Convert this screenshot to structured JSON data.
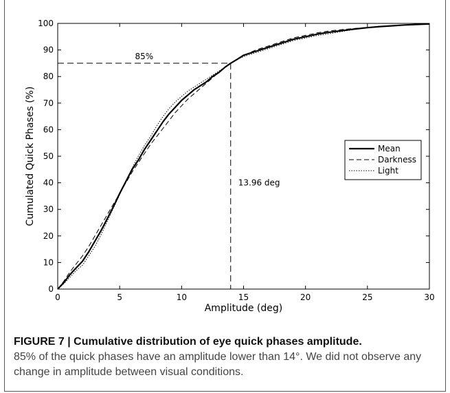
{
  "chart_data": {
    "type": "line",
    "xlabel": "Amplitude (deg)",
    "ylabel": "Cumulated Quick Phases (%)",
    "xlim": [
      0,
      30
    ],
    "ylim": [
      0,
      100
    ],
    "xticks": [
      0,
      5,
      10,
      15,
      20,
      25,
      30
    ],
    "yticks": [
      0,
      10,
      20,
      30,
      40,
      50,
      60,
      70,
      80,
      90,
      100
    ],
    "grid": false,
    "legend_position": "right",
    "series": [
      {
        "name": "Mean",
        "style": "solid",
        "x": [
          0,
          0.5,
          1,
          1.5,
          2,
          2.5,
          3,
          3.5,
          4,
          4.5,
          5,
          5.5,
          6,
          6.5,
          7,
          7.5,
          8,
          8.5,
          9,
          9.5,
          10,
          10.5,
          11,
          11.5,
          12,
          12.5,
          13,
          13.5,
          13.96,
          14.5,
          15,
          16,
          17,
          18,
          19,
          20,
          21,
          22,
          23,
          24,
          25,
          26,
          27,
          28,
          29,
          30
        ],
        "y": [
          0,
          2.5,
          5.5,
          8,
          10.5,
          14,
          18,
          22,
          26.5,
          31,
          36,
          40.5,
          45,
          48.5,
          52.5,
          56,
          59.5,
          63,
          66,
          68.5,
          71,
          73,
          75,
          76.5,
          78,
          80,
          81.5,
          83.5,
          85,
          86.5,
          88,
          89.5,
          91,
          92.5,
          94,
          95,
          96,
          96.7,
          97.3,
          97.9,
          98.4,
          98.8,
          99.1,
          99.4,
          99.6,
          99.8
        ]
      },
      {
        "name": "Darkness",
        "style": "dashed",
        "x": [
          0,
          0.5,
          1,
          1.5,
          2,
          2.5,
          3,
          3.5,
          4,
          4.5,
          5,
          5.5,
          6,
          6.5,
          7,
          7.5,
          8,
          8.5,
          9,
          9.5,
          10,
          10.5,
          11,
          11.5,
          12,
          12.5,
          13,
          13.5,
          13.96,
          14.5,
          15,
          16,
          17,
          18,
          19,
          20,
          21,
          22,
          23,
          24,
          25,
          26,
          27,
          28,
          29,
          30
        ],
        "y": [
          0,
          3,
          6.5,
          9.5,
          12.5,
          16,
          20,
          24,
          28,
          32,
          36,
          40,
          44,
          47.5,
          51,
          54.5,
          57.5,
          60.5,
          63.5,
          66.5,
          69,
          71.5,
          73.5,
          75.5,
          77.5,
          79.5,
          81.5,
          83.5,
          85,
          86.5,
          88,
          90,
          91.5,
          93,
          94.5,
          95.5,
          96.5,
          97.2,
          97.7,
          98.1,
          98.5,
          98.9,
          99.2,
          99.4,
          99.6,
          99.8
        ]
      },
      {
        "name": "Light",
        "style": "dotted",
        "x": [
          0,
          0.5,
          1,
          1.5,
          2,
          2.5,
          3,
          3.5,
          4,
          4.5,
          5,
          5.5,
          6,
          6.5,
          7,
          7.5,
          8,
          8.5,
          9,
          9.5,
          10,
          10.5,
          11,
          11.5,
          12,
          12.5,
          13,
          13.5,
          13.96,
          14.5,
          15,
          16,
          17,
          18,
          19,
          20,
          21,
          22,
          23,
          24,
          25,
          26,
          27,
          28,
          29,
          30
        ],
        "y": [
          0,
          2,
          4.5,
          7,
          9,
          12.5,
          16,
          20.5,
          25.5,
          30.5,
          35.5,
          40.5,
          45.5,
          50,
          54,
          57.5,
          61.5,
          65,
          68,
          70.5,
          72.5,
          74.5,
          76,
          77.5,
          79,
          80.5,
          82,
          83.5,
          85,
          86.5,
          87.5,
          89,
          90.5,
          92,
          93.5,
          94.5,
          95.5,
          96.2,
          97,
          97.8,
          98.4,
          98.8,
          99.1,
          99.4,
          99.6,
          99.8
        ]
      }
    ],
    "annotations": {
      "threshold_label": "85%",
      "threshold_y": 85,
      "amplitude_label": "13.96 deg",
      "amplitude_x": 13.96
    }
  },
  "caption": {
    "title": "FIGURE 7 | Cumulative distribution of eye quick phases amplitude.",
    "body": "85% of the quick phases have an amplitude lower than 14°. We did not observe any change in amplitude between visual conditions."
  }
}
